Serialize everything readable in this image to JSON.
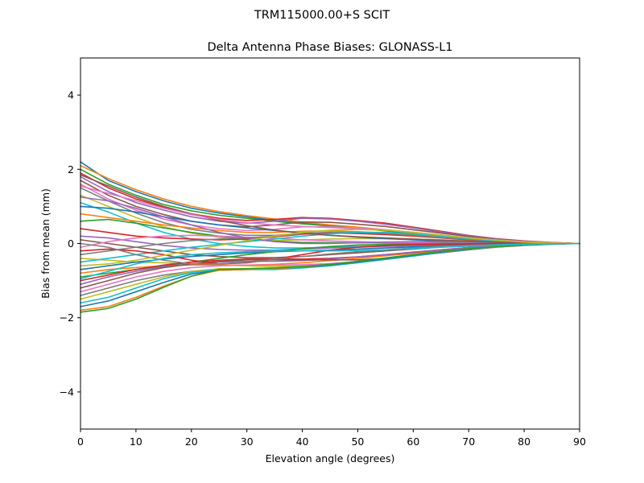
{
  "figure": {
    "suptitle": "TRM115000.00+S  SCIT"
  },
  "chart_data": {
    "type": "line",
    "title": "Delta Antenna Phase Biases: GLONASS-L1",
    "xlabel": "Elevation angle (degrees)",
    "ylabel": "Bias from mean (mm)",
    "xlim": [
      0,
      90
    ],
    "ylim": [
      -5,
      5
    ],
    "xticks": [
      0,
      10,
      20,
      30,
      40,
      50,
      60,
      70,
      80,
      90
    ],
    "xtick_labels": [
      "0",
      "10",
      "20",
      "30",
      "40",
      "50",
      "60",
      "70",
      "80",
      "90"
    ],
    "yticks": [
      -4,
      -2,
      0,
      2,
      4
    ],
    "ytick_labels": [
      "−4",
      "−2",
      "0",
      "2",
      "4"
    ],
    "grid": false,
    "legend": "none",
    "x": [
      0,
      5,
      10,
      15,
      20,
      25,
      30,
      35,
      40,
      45,
      50,
      55,
      60,
      65,
      70,
      75,
      80,
      85,
      90
    ],
    "colors": [
      "#1f77b4",
      "#ff7f0e",
      "#2ca02c",
      "#d62728",
      "#9467bd",
      "#8c564b",
      "#e377c2",
      "#7f7f7f",
      "#bcbd22",
      "#17becf"
    ],
    "series": [
      {
        "values": [
          2.2,
          1.7,
          1.4,
          1.15,
          0.95,
          0.82,
          0.72,
          0.62,
          0.55,
          0.48,
          0.42,
          0.35,
          0.28,
          0.21,
          0.15,
          0.09,
          0.05,
          0.02,
          0.0
        ]
      },
      {
        "values": [
          2.1,
          1.75,
          1.45,
          1.2,
          1.0,
          0.86,
          0.75,
          0.66,
          0.58,
          0.5,
          0.44,
          0.37,
          0.3,
          0.22,
          0.15,
          0.09,
          0.05,
          0.02,
          0.0
        ]
      },
      {
        "values": [
          2.0,
          1.6,
          1.3,
          1.05,
          0.88,
          0.76,
          0.68,
          0.6,
          0.53,
          0.47,
          0.41,
          0.34,
          0.27,
          0.2,
          0.14,
          0.09,
          0.05,
          0.02,
          0.0
        ]
      },
      {
        "values": [
          1.9,
          1.5,
          1.2,
          0.98,
          0.8,
          0.68,
          0.62,
          0.65,
          0.7,
          0.68,
          0.62,
          0.55,
          0.44,
          0.33,
          0.22,
          0.13,
          0.07,
          0.03,
          0.0
        ]
      },
      {
        "values": [
          1.8,
          1.4,
          1.1,
          0.9,
          0.72,
          0.6,
          0.55,
          0.6,
          0.68,
          0.66,
          0.6,
          0.52,
          0.42,
          0.31,
          0.21,
          0.12,
          0.06,
          0.02,
          0.0
        ]
      },
      {
        "values": [
          1.7,
          1.3,
          1.0,
          0.78,
          0.6,
          0.5,
          0.45,
          0.5,
          0.58,
          0.57,
          0.52,
          0.46,
          0.37,
          0.28,
          0.19,
          0.11,
          0.06,
          0.02,
          0.0
        ]
      },
      {
        "values": [
          1.6,
          1.2,
          0.9,
          0.66,
          0.5,
          0.4,
          0.35,
          0.38,
          0.45,
          0.45,
          0.42,
          0.37,
          0.3,
          0.22,
          0.15,
          0.09,
          0.05,
          0.02,
          0.0
        ]
      },
      {
        "values": [
          1.5,
          1.15,
          0.82,
          0.56,
          0.38,
          0.28,
          0.22,
          0.22,
          0.28,
          0.3,
          0.29,
          0.27,
          0.23,
          0.18,
          0.12,
          0.07,
          0.04,
          0.01,
          0.0
        ]
      },
      {
        "values": [
          1.3,
          1.0,
          0.7,
          0.45,
          0.28,
          0.17,
          0.1,
          0.08,
          0.1,
          0.12,
          0.13,
          0.13,
          0.12,
          0.1,
          0.07,
          0.05,
          0.03,
          0.01,
          0.0
        ]
      },
      {
        "values": [
          1.1,
          0.85,
          0.55,
          0.3,
          0.12,
          0.0,
          -0.08,
          -0.12,
          -0.12,
          -0.1,
          -0.08,
          -0.06,
          -0.04,
          -0.03,
          -0.02,
          -0.01,
          0.0,
          0.0,
          0.0
        ]
      },
      {
        "values": [
          1.0,
          0.95,
          0.85,
          0.72,
          0.6,
          0.5,
          0.42,
          0.35,
          0.28,
          0.22,
          0.17,
          0.13,
          0.1,
          0.07,
          0.05,
          0.03,
          0.02,
          0.01,
          0.0
        ]
      },
      {
        "values": [
          0.8,
          0.7,
          0.6,
          0.5,
          0.42,
          0.35,
          0.3,
          0.3,
          0.33,
          0.34,
          0.32,
          0.28,
          0.23,
          0.17,
          0.12,
          0.07,
          0.04,
          0.01,
          0.0
        ]
      },
      {
        "values": [
          0.6,
          0.65,
          0.55,
          0.42,
          0.3,
          0.2,
          0.12,
          0.06,
          0.03,
          0.02,
          0.02,
          0.02,
          0.02,
          0.02,
          0.01,
          0.01,
          0.0,
          0.0,
          0.0
        ]
      },
      {
        "values": [
          0.4,
          0.3,
          0.2,
          0.15,
          0.12,
          0.1,
          0.12,
          0.18,
          0.25,
          0.28,
          0.27,
          0.24,
          0.2,
          0.15,
          0.1,
          0.06,
          0.03,
          0.01,
          0.0
        ]
      },
      {
        "values": [
          0.2,
          0.15,
          0.05,
          -0.05,
          -0.12,
          -0.16,
          -0.18,
          -0.18,
          -0.15,
          -0.12,
          -0.1,
          -0.08,
          -0.06,
          -0.04,
          -0.03,
          -0.02,
          -0.01,
          0.0,
          0.0
        ]
      },
      {
        "values": [
          0.1,
          0.0,
          -0.1,
          -0.2,
          -0.3,
          -0.35,
          -0.38,
          -0.38,
          -0.35,
          -0.3,
          -0.25,
          -0.2,
          -0.15,
          -0.1,
          -0.07,
          -0.04,
          -0.02,
          -0.01,
          0.0
        ]
      },
      {
        "values": [
          -0.1,
          0.05,
          0.15,
          0.2,
          0.22,
          0.2,
          0.17,
          0.14,
          0.1,
          0.07,
          0.05,
          0.03,
          0.02,
          0.01,
          0.01,
          0.0,
          0.0,
          0.0,
          0.0
        ]
      },
      {
        "values": [
          -0.3,
          -0.2,
          -0.1,
          0.0,
          0.08,
          0.12,
          0.15,
          0.2,
          0.26,
          0.3,
          0.3,
          0.27,
          0.22,
          0.16,
          0.11,
          0.06,
          0.03,
          0.01,
          0.0
        ]
      },
      {
        "values": [
          -0.4,
          -0.45,
          -0.5,
          -0.52,
          -0.55,
          -0.58,
          -0.6,
          -0.62,
          -0.6,
          -0.55,
          -0.48,
          -0.4,
          -0.3,
          -0.21,
          -0.13,
          -0.07,
          -0.03,
          -0.01,
          0.0
        ]
      },
      {
        "values": [
          -0.5,
          -0.4,
          -0.3,
          -0.2,
          -0.1,
          -0.02,
          0.05,
          0.12,
          0.2,
          0.26,
          0.3,
          0.3,
          0.26,
          0.2,
          0.13,
          0.07,
          0.03,
          0.01,
          0.0
        ]
      },
      {
        "values": [
          -0.7,
          -0.6,
          -0.5,
          -0.42,
          -0.35,
          -0.3,
          -0.25,
          -0.22,
          -0.2,
          -0.18,
          -0.15,
          -0.12,
          -0.09,
          -0.06,
          -0.04,
          -0.02,
          -0.01,
          0.0,
          0.0
        ]
      },
      {
        "values": [
          -0.8,
          -0.7,
          -0.65,
          -0.6,
          -0.58,
          -0.58,
          -0.58,
          -0.56,
          -0.52,
          -0.46,
          -0.4,
          -0.33,
          -0.26,
          -0.18,
          -0.11,
          -0.06,
          -0.03,
          -0.01,
          0.0
        ]
      },
      {
        "values": [
          -0.9,
          -0.8,
          -0.7,
          -0.6,
          -0.5,
          -0.4,
          -0.3,
          -0.22,
          -0.14,
          -0.08,
          -0.04,
          -0.02,
          -0.01,
          0.0,
          0.0,
          0.0,
          0.0,
          0.0,
          0.0
        ]
      },
      {
        "values": [
          -1.0,
          -0.85,
          -0.7,
          -0.58,
          -0.5,
          -0.45,
          -0.42,
          -0.42,
          -0.42,
          -0.4,
          -0.36,
          -0.3,
          -0.24,
          -0.17,
          -0.11,
          -0.06,
          -0.03,
          -0.01,
          0.0
        ]
      },
      {
        "values": [
          -1.1,
          -0.9,
          -0.75,
          -0.62,
          -0.55,
          -0.5,
          -0.48,
          -0.48,
          -0.46,
          -0.42,
          -0.36,
          -0.3,
          -0.23,
          -0.17,
          -0.11,
          -0.06,
          -0.03,
          -0.01,
          0.0
        ]
      },
      {
        "values": [
          -1.2,
          -1.0,
          -0.8,
          -0.65,
          -0.55,
          -0.48,
          -0.44,
          -0.44,
          -0.44,
          -0.44,
          -0.44,
          -0.4,
          -0.33,
          -0.25,
          -0.17,
          -0.1,
          -0.05,
          -0.02,
          0.0
        ]
      },
      {
        "values": [
          -1.3,
          -1.1,
          -0.9,
          -0.75,
          -0.65,
          -0.6,
          -0.58,
          -0.58,
          -0.57,
          -0.54,
          -0.49,
          -0.42,
          -0.33,
          -0.24,
          -0.16,
          -0.09,
          -0.04,
          -0.01,
          0.0
        ]
      },
      {
        "values": [
          -1.4,
          -1.2,
          -1.0,
          -0.85,
          -0.75,
          -0.7,
          -0.68,
          -0.66,
          -0.62,
          -0.56,
          -0.49,
          -0.41,
          -0.32,
          -0.23,
          -0.15,
          -0.09,
          -0.04,
          -0.01,
          0.0
        ]
      },
      {
        "values": [
          -1.5,
          -1.3,
          -1.1,
          -0.9,
          -0.75,
          -0.68,
          -0.68,
          -0.68,
          -0.64,
          -0.58,
          -0.5,
          -0.42,
          -0.32,
          -0.23,
          -0.15,
          -0.08,
          -0.04,
          -0.01,
          0.0
        ]
      },
      {
        "values": [
          -1.6,
          -1.45,
          -1.2,
          -0.95,
          -0.78,
          -0.7,
          -0.7,
          -0.7,
          -0.66,
          -0.6,
          -0.52,
          -0.43,
          -0.34,
          -0.24,
          -0.16,
          -0.09,
          -0.04,
          -0.01,
          0.0
        ]
      },
      {
        "values": [
          -1.7,
          -1.55,
          -1.3,
          -1.05,
          -0.82,
          -0.72,
          -0.7,
          -0.68,
          -0.64,
          -0.58,
          -0.5,
          -0.41,
          -0.32,
          -0.23,
          -0.15,
          -0.08,
          -0.04,
          -0.01,
          0.0
        ]
      },
      {
        "values": [
          -1.8,
          -1.7,
          -1.45,
          -1.15,
          -0.88,
          -0.72,
          -0.7,
          -0.68,
          -0.63,
          -0.56,
          -0.48,
          -0.39,
          -0.3,
          -0.21,
          -0.14,
          -0.08,
          -0.04,
          -0.01,
          0.0
        ]
      },
      {
        "values": [
          -1.85,
          -1.75,
          -1.5,
          -1.18,
          -0.88,
          -0.7,
          -0.68,
          -0.66,
          -0.62,
          -0.56,
          -0.48,
          -0.39,
          -0.3,
          -0.21,
          -0.14,
          -0.08,
          -0.04,
          -0.01,
          0.0
        ]
      },
      {
        "values": [
          -0.2,
          -0.15,
          -0.2,
          -0.3,
          -0.45,
          -0.55,
          -0.52,
          -0.42,
          -0.3,
          -0.18,
          -0.1,
          -0.05,
          -0.03,
          -0.02,
          -0.01,
          0.0,
          0.0,
          0.0,
          0.0
        ]
      },
      {
        "values": [
          1.25,
          1.15,
          0.95,
          0.72,
          0.5,
          0.3,
          0.15,
          0.05,
          0.0,
          0.0,
          0.02,
          0.04,
          0.05,
          0.05,
          0.04,
          0.03,
          0.02,
          0.01,
          0.0
        ]
      },
      {
        "values": [
          1.85,
          1.55,
          1.25,
          1.0,
          0.8,
          0.62,
          0.48,
          0.36,
          0.28,
          0.22,
          0.18,
          0.15,
          0.12,
          0.09,
          0.06,
          0.04,
          0.02,
          0.01,
          0.0
        ]
      },
      {
        "values": [
          1.55,
          1.35,
          1.15,
          0.95,
          0.78,
          0.65,
          0.56,
          0.5,
          0.46,
          0.43,
          0.4,
          0.36,
          0.3,
          0.23,
          0.16,
          0.1,
          0.05,
          0.02,
          0.0
        ]
      },
      {
        "values": [
          0.0,
          -0.1,
          -0.3,
          -0.45,
          -0.55,
          -0.55,
          -0.5,
          -0.42,
          -0.35,
          -0.28,
          -0.22,
          -0.17,
          -0.12,
          -0.08,
          -0.05,
          -0.03,
          -0.01,
          0.0,
          0.0
        ]
      },
      {
        "values": [
          -0.6,
          -0.55,
          -0.45,
          -0.32,
          -0.18,
          -0.05,
          0.08,
          0.2,
          0.3,
          0.36,
          0.38,
          0.36,
          0.3,
          0.23,
          0.15,
          0.09,
          0.04,
          0.01,
          0.0
        ]
      },
      {
        "values": [
          -0.95,
          -0.75,
          -0.55,
          -0.4,
          -0.3,
          -0.25,
          -0.22,
          -0.2,
          -0.2,
          -0.2,
          -0.19,
          -0.17,
          -0.14,
          -0.1,
          -0.07,
          -0.04,
          -0.02,
          -0.01,
          0.0
        ]
      }
    ]
  }
}
